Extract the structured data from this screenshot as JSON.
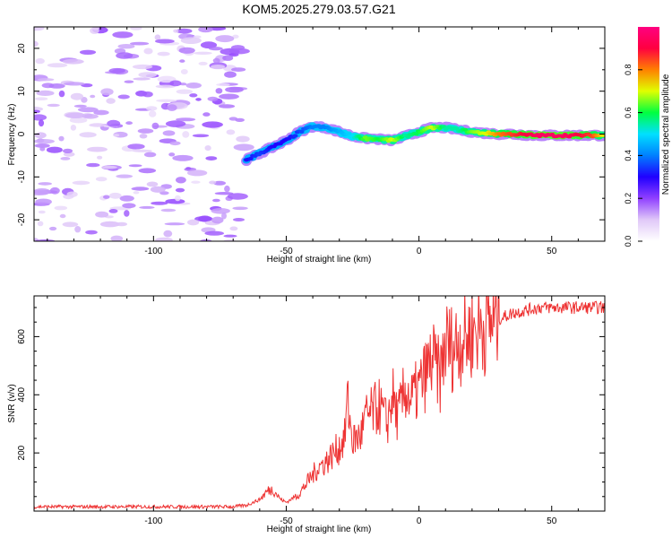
{
  "figure": {
    "title": "KOM5.2025.279.03.57.G21"
  },
  "chart_data": [
    {
      "type": "heatmap",
      "title": "KOM5.2025.279.03.57.G21",
      "xlabel": "Height of straight line (km)",
      "ylabel": "Frequency (Hz)",
      "xlim": [
        -145,
        70
      ],
      "ylim": [
        -25,
        25
      ],
      "xticks": [
        -100,
        -50,
        0,
        50
      ],
      "yticks": [
        -20,
        -10,
        0,
        10,
        20
      ],
      "colorbar": {
        "label": "Normalized spectral amplitude",
        "range": [
          0,
          1
        ],
        "ticks": [
          0.0,
          0.2,
          0.4,
          0.6,
          0.8
        ],
        "colormap": [
          "#ffffff",
          "#e0c8f8",
          "#9040ff",
          "#2000ff",
          "#0080ff",
          "#00e0ff",
          "#00ff40",
          "#e0ff00",
          "#ff8000",
          "#ff0040",
          "#ff0080"
        ]
      },
      "ridge": {
        "x": [
          -65,
          -60,
          -55,
          -50,
          -45,
          -40,
          -35,
          -30,
          -25,
          -20,
          -15,
          -10,
          -5,
          0,
          5,
          10,
          15,
          20,
          25,
          30,
          35,
          40,
          45,
          50,
          55,
          60,
          65,
          70
        ],
        "freq": [
          -6,
          -4.5,
          -3,
          -1.5,
          0.5,
          1.8,
          1.5,
          0.5,
          -0.5,
          -1,
          -1.2,
          -1.5,
          -0.5,
          0.5,
          1.5,
          1.5,
          1,
          0.5,
          0.2,
          0,
          0,
          -0.2,
          -0.3,
          -0.3,
          -0.3,
          -0.3,
          -0.3,
          -0.3
        ],
        "amplitude": [
          0.3,
          0.35,
          0.3,
          0.3,
          0.35,
          0.4,
          0.4,
          0.45,
          0.5,
          0.65,
          0.6,
          0.7,
          0.55,
          0.6,
          0.7,
          0.55,
          0.55,
          0.65,
          0.7,
          0.8,
          0.85,
          0.9,
          0.95,
          0.95,
          0.95,
          0.9,
          0.85,
          0.7
        ]
      },
      "noise_region": {
        "x": [
          -145,
          -65
        ],
        "amplitude": 0.1
      }
    },
    {
      "type": "line",
      "xlabel": "Height of straight line (km)",
      "ylabel": "SNR (v/v)",
      "xlim": [
        -145,
        70
      ],
      "ylim": [
        0,
        740
      ],
      "xticks": [
        -100,
        -50,
        0,
        50
      ],
      "yticks": [
        200,
        400,
        600
      ],
      "color": "#ee3333",
      "series": [
        {
          "x": [
            -145,
            -130,
            -115,
            -100,
            -85,
            -70,
            -65,
            -60,
            -57,
            -55,
            -52,
            -50,
            -45,
            -42,
            -38,
            -35,
            -30,
            -28,
            -27,
            -25,
            -22,
            -20,
            -15,
            -12,
            -10,
            -8,
            -5,
            -3,
            0,
            3,
            5,
            8,
            10,
            13,
            15,
            18,
            20,
            25,
            30,
            35,
            40,
            45,
            50,
            55,
            60,
            65,
            70
          ],
          "y": [
            15,
            15,
            15,
            15,
            15,
            15,
            20,
            40,
            70,
            75,
            40,
            30,
            60,
            100,
            150,
            170,
            220,
            250,
            380,
            240,
            260,
            320,
            360,
            300,
            400,
            320,
            420,
            380,
            420,
            480,
            520,
            460,
            580,
            560,
            590,
            600,
            620,
            640,
            660,
            680,
            690,
            700,
            700,
            700,
            700,
            700,
            700
          ]
        }
      ]
    }
  ]
}
